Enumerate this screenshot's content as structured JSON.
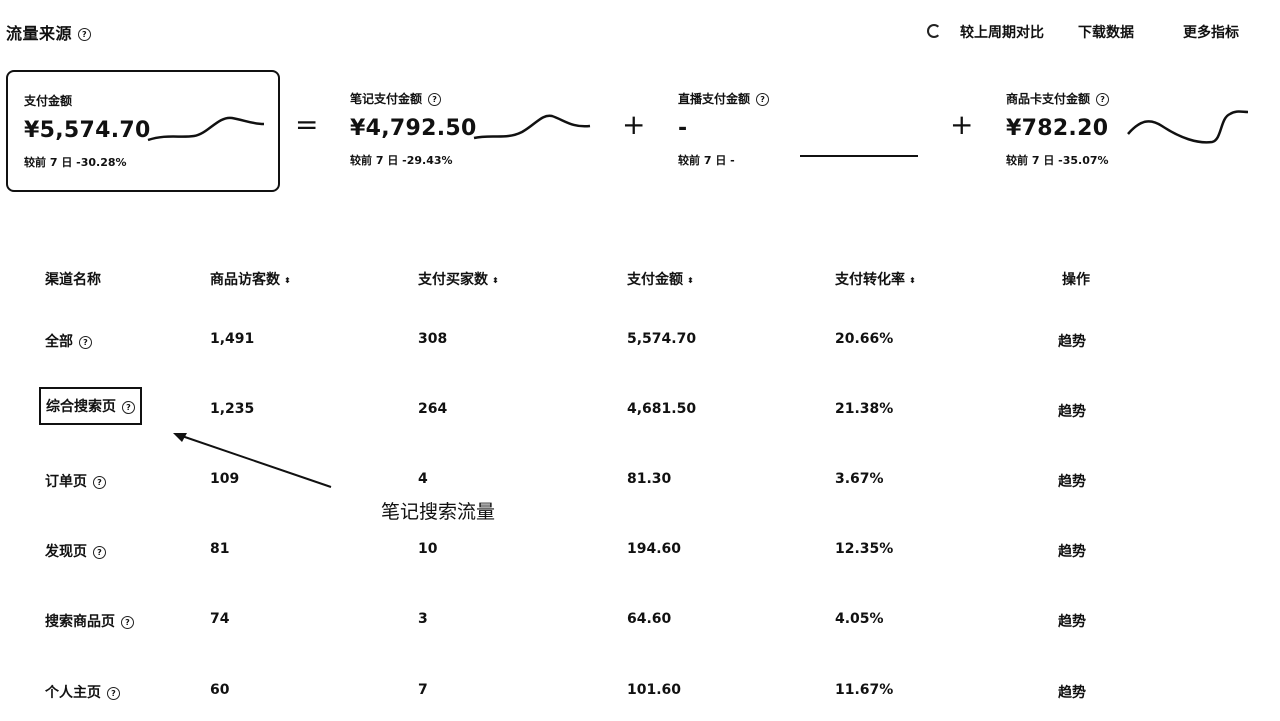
{
  "header": {
    "title": "流量来源",
    "compare_label": "较上周期对比",
    "download_label": "下载数据",
    "more_label": "更多指标"
  },
  "cards": [
    {
      "label": "支付金额",
      "value": "¥5,574.70",
      "compare": "较前 7 日  -30.28%"
    },
    {
      "label": "笔记支付金额",
      "value": "¥4,792.50",
      "compare": "较前 7 日  -29.43%"
    },
    {
      "label": "直播支付金额",
      "value": "-",
      "compare": "较前 7 日  -"
    },
    {
      "label": "商品卡支付金额",
      "value": "¥782.20",
      "compare": "较前 7 日  -35.07%"
    }
  ],
  "operators": [
    "=",
    "+",
    "+"
  ],
  "table": {
    "headers": [
      "渠道名称",
      "商品访客数",
      "支付买家数",
      "支付金额",
      "支付转化率",
      "操作"
    ],
    "rows": [
      {
        "channel": "全部",
        "visitors": "1,491",
        "buyers": "308",
        "amount": "5,574.70",
        "rate": "20.66%",
        "action": "趋势"
      },
      {
        "channel": "综合搜索页",
        "visitors": "1,235",
        "buyers": "264",
        "amount": "4,681.50",
        "rate": "21.38%",
        "action": "趋势"
      },
      {
        "channel": "订单页",
        "visitors": "109",
        "buyers": "4",
        "amount": "81.30",
        "rate": "3.67%",
        "action": "趋势"
      },
      {
        "channel": "发现页",
        "visitors": "81",
        "buyers": "10",
        "amount": "194.60",
        "rate": "12.35%",
        "action": "趋势"
      },
      {
        "channel": "搜索商品页",
        "visitors": "74",
        "buyers": "3",
        "amount": "64.60",
        "rate": "4.05%",
        "action": "趋势"
      },
      {
        "channel": "个人主页",
        "visitors": "60",
        "buyers": "7",
        "amount": "101.60",
        "rate": "11.67%",
        "action": "趋势"
      }
    ]
  },
  "annotation": "笔记搜索流量"
}
